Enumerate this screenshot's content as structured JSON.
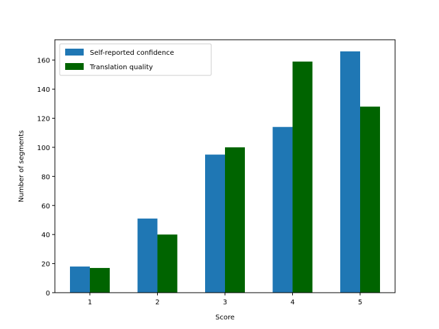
{
  "chart_data": {
    "type": "bar",
    "title": "",
    "xlabel": "Score",
    "ylabel": "Number of segments",
    "categories": [
      "1",
      "2",
      "3",
      "4",
      "5"
    ],
    "series": [
      {
        "name": "Self-reported confidence",
        "color": "#1f77b4",
        "values": [
          18,
          51,
          95,
          114,
          166
        ]
      },
      {
        "name": "Translation quality",
        "color": "#006400",
        "values": [
          17,
          40,
          100,
          159,
          128
        ]
      }
    ],
    "ylim": [
      0,
      174
    ],
    "yticks": [
      0,
      20,
      40,
      60,
      80,
      100,
      120,
      140,
      160
    ],
    "grid": false,
    "legend": "top-left"
  }
}
